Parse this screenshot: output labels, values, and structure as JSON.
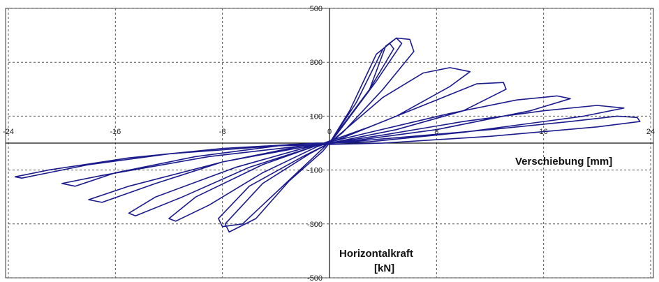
{
  "chart_data": {
    "type": "line",
    "title": "",
    "xlabel": "Verschiebung  [mm]",
    "ylabel_line1": "Horizontalkraft",
    "ylabel_line2": "[kN]",
    "xlim": [
      -24,
      24
    ],
    "ylim": [
      -500,
      500
    ],
    "x_ticks": [
      -24,
      -16,
      -8,
      0,
      8,
      16,
      24
    ],
    "x_tick_labels": [
      "-24",
      "-16",
      "-8",
      "0",
      "8",
      "16",
      "24"
    ],
    "y_ticks": [
      500,
      300,
      100,
      -100,
      -300,
      -500
    ],
    "y_tick_labels": [
      "500",
      "300",
      "100",
      "-100",
      "-300",
      "-500"
    ],
    "grid": true,
    "line_color": "#1a1a8c",
    "series": [
      {
        "values": [
          [
            0,
            0
          ],
          [
            2,
            150
          ],
          [
            4,
            350
          ],
          [
            5,
            390
          ],
          [
            6,
            385
          ],
          [
            6.3,
            340
          ],
          [
            4,
            200
          ],
          [
            1,
            40
          ],
          [
            0,
            0
          ],
          [
            3,
            200
          ],
          [
            4.2,
            360
          ],
          [
            5,
            390
          ],
          [
            5.4,
            370
          ],
          [
            3.5,
            230
          ],
          [
            0.5,
            30
          ],
          [
            -0.5,
            -30
          ],
          [
            -3,
            -140
          ],
          [
            -5.5,
            -280
          ],
          [
            -7.5,
            -330
          ],
          [
            -7.8,
            -300
          ],
          [
            -5,
            -150
          ],
          [
            -1.5,
            -40
          ],
          [
            0,
            0
          ],
          [
            1.5,
            120
          ],
          [
            3.5,
            330
          ],
          [
            4.5,
            370
          ],
          [
            4.8,
            350
          ],
          [
            3,
            200
          ],
          [
            0.5,
            30
          ],
          [
            -0.5,
            -20
          ],
          [
            -3.5,
            -160
          ],
          [
            -6.5,
            -300
          ],
          [
            -8,
            -310
          ],
          [
            -8.3,
            -280
          ],
          [
            -6,
            -160
          ],
          [
            -2,
            -50
          ],
          [
            0,
            0
          ],
          [
            4,
            170
          ],
          [
            7,
            260
          ],
          [
            9,
            280
          ],
          [
            10.5,
            265
          ],
          [
            9,
            210
          ],
          [
            5,
            100
          ],
          [
            1,
            20
          ],
          [
            -1,
            -15
          ],
          [
            -5,
            -110
          ],
          [
            -9,
            -230
          ],
          [
            -11.5,
            -290
          ],
          [
            -12,
            -280
          ],
          [
            -10,
            -200
          ],
          [
            -5,
            -80
          ],
          [
            -1,
            -10
          ],
          [
            3,
            60
          ],
          [
            7,
            140
          ],
          [
            11,
            220
          ],
          [
            13,
            225
          ],
          [
            13.2,
            200
          ],
          [
            10,
            120
          ],
          [
            5,
            50
          ],
          [
            1,
            10
          ],
          [
            -1,
            -10
          ],
          [
            -6,
            -90
          ],
          [
            -11,
            -200
          ],
          [
            -14.5,
            -270
          ],
          [
            -15,
            -260
          ],
          [
            -13,
            -200
          ],
          [
            -7,
            -90
          ],
          [
            -2,
            -20
          ],
          [
            3,
            40
          ],
          [
            9,
            110
          ],
          [
            14,
            160
          ],
          [
            17,
            175
          ],
          [
            18,
            165
          ],
          [
            15,
            120
          ],
          [
            8,
            50
          ],
          [
            2,
            10
          ],
          [
            -2,
            -10
          ],
          [
            -8,
            -70
          ],
          [
            -13,
            -150
          ],
          [
            -17,
            -220
          ],
          [
            -18,
            -210
          ],
          [
            -15,
            -160
          ],
          [
            -8,
            -70
          ],
          [
            -2,
            -15
          ],
          [
            4,
            30
          ],
          [
            10,
            80
          ],
          [
            16,
            120
          ],
          [
            20,
            140
          ],
          [
            22,
            130
          ],
          [
            19,
            100
          ],
          [
            10,
            40
          ],
          [
            3,
            5
          ],
          [
            -3,
            -5
          ],
          [
            -10,
            -50
          ],
          [
            -16,
            -110
          ],
          [
            -19,
            -160
          ],
          [
            -20,
            -150
          ],
          [
            -17,
            -120
          ],
          [
            -9,
            -50
          ],
          [
            -2,
            -10
          ],
          [
            5,
            20
          ],
          [
            12,
            50
          ],
          [
            18,
            80
          ],
          [
            21.5,
            100
          ],
          [
            23,
            95
          ],
          [
            23.2,
            80
          ],
          [
            20,
            60
          ],
          [
            12,
            25
          ],
          [
            4,
            0
          ],
          [
            -4,
            -10
          ],
          [
            -12,
            -40
          ],
          [
            -18,
            -80
          ],
          [
            -21,
            -110
          ],
          [
            -23,
            -130
          ],
          [
            -23.5,
            -125
          ],
          [
            -21,
            -100
          ],
          [
            -15,
            -55
          ],
          [
            -8,
            -20
          ],
          [
            -1,
            0
          ],
          [
            0,
            0
          ]
        ]
      }
    ]
  }
}
